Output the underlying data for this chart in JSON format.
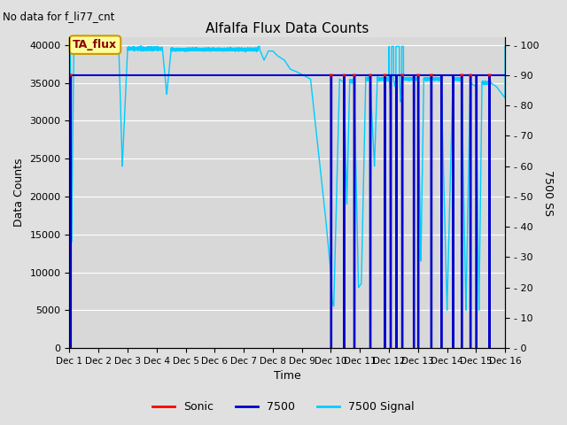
{
  "title": "Alfalfa Flux Data Counts",
  "subtitle": "No data for f_li77_cnt",
  "xlabel": "Time",
  "ylabel_left": "Data Counts",
  "ylabel_right": "7500 SS",
  "ylim_left": [
    0,
    41000
  ],
  "ylim_right": [
    0,
    102.5
  ],
  "yticks_left": [
    0,
    5000,
    10000,
    15000,
    20000,
    25000,
    30000,
    35000,
    40000
  ],
  "yticks_right": [
    0,
    10,
    20,
    30,
    40,
    50,
    60,
    70,
    80,
    90,
    100
  ],
  "background_color": "#e0e0e0",
  "plot_bg_color": "#d8d8d8",
  "grid_color": "#ffffff",
  "annotation_text": "TA_flux",
  "annotation_bbox_fc": "#ffff99",
  "annotation_bbox_ec": "#cc9900",
  "sonic_color": "#ff0000",
  "sensor7500_color": "#0000cc",
  "signal7500_color": "#00ccff",
  "sensor7500_level": 36000,
  "legend_items": [
    "Sonic",
    "7500",
    "7500 Signal"
  ],
  "xtick_labels": [
    "Dec 1",
    "Dec 2",
    "Dec 3",
    "Dec 4",
    "Dec 5",
    "Dec 6",
    "Dec 7",
    "Dec 8",
    "Dec 9",
    "Dec 10",
    "Dec 11",
    "Dec 12",
    "Dec 13",
    "Dec 14",
    "Dec 15",
    "Dec 16"
  ]
}
